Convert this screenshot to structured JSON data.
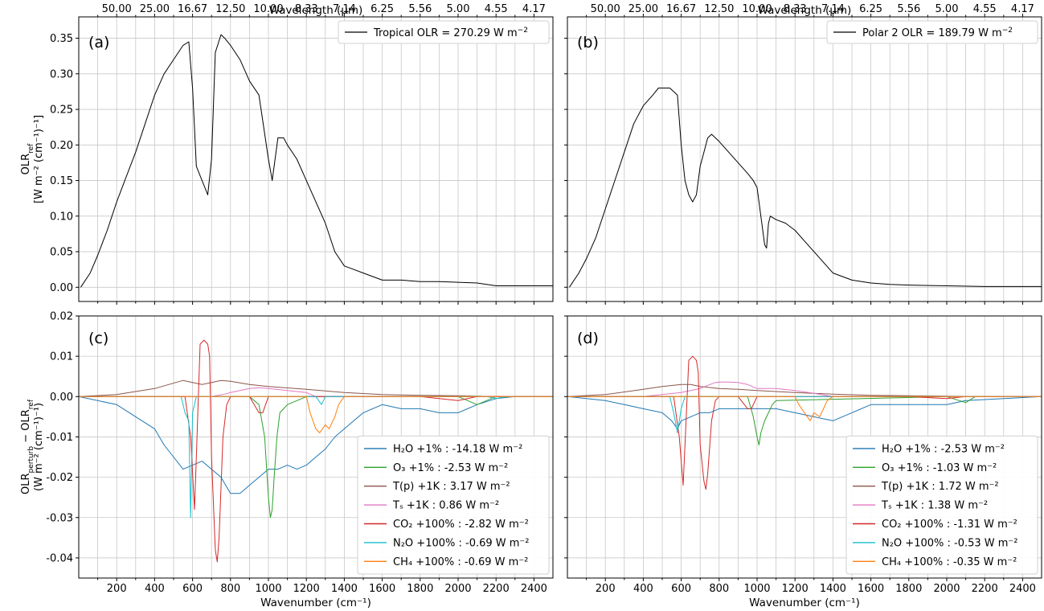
{
  "chart_data": [
    {
      "id": "a",
      "type": "line",
      "panel_label": "(a)",
      "xlim": [
        0,
        2500
      ],
      "ylim": [
        -0.02,
        0.38
      ],
      "yticks": [
        0.0,
        0.05,
        0.1,
        0.15,
        0.2,
        0.25,
        0.3,
        0.35
      ],
      "top_axis_label": "Wavelength (μm)",
      "top_ticks": [
        "50.00",
        "25.00",
        "16.67",
        "12.50",
        "10.00",
        "8.33",
        "7.14",
        "6.25",
        "5.56",
        "5.00",
        "4.55",
        "4.17"
      ],
      "ylabel_main": "OLR",
      "ylabel_sub": "ref",
      "ylabel_line2": "[W m⁻² (cm⁻¹)⁻¹]",
      "legend_placement": "top-right",
      "series": [
        {
          "name": "Tropical OLR = 270.29 W  m",
          "name_sup": "−2",
          "color": "#000000",
          "x": [
            10,
            60,
            100,
            150,
            200,
            250,
            300,
            350,
            400,
            450,
            500,
            550,
            580,
            600,
            620,
            650,
            680,
            700,
            720,
            750,
            770,
            800,
            850,
            900,
            950,
            1000,
            1020,
            1050,
            1080,
            1100,
            1150,
            1200,
            1250,
            1300,
            1350,
            1400,
            1450,
            1500,
            1550,
            1600,
            1700,
            1800,
            1900,
            2000,
            2100,
            2200,
            2300,
            2400,
            2500
          ],
          "y": [
            0.0,
            0.02,
            0.045,
            0.08,
            0.12,
            0.155,
            0.19,
            0.23,
            0.27,
            0.3,
            0.32,
            0.34,
            0.345,
            0.28,
            0.17,
            0.15,
            0.13,
            0.18,
            0.33,
            0.355,
            0.35,
            0.34,
            0.32,
            0.29,
            0.27,
            0.18,
            0.15,
            0.21,
            0.21,
            0.2,
            0.18,
            0.15,
            0.12,
            0.09,
            0.05,
            0.03,
            0.025,
            0.02,
            0.015,
            0.01,
            0.01,
            0.008,
            0.008,
            0.007,
            0.006,
            0.002,
            0.002,
            0.002,
            0.002
          ]
        }
      ]
    },
    {
      "id": "b",
      "type": "line",
      "panel_label": "(b)",
      "xlim": [
        0,
        2500
      ],
      "ylim": [
        -0.02,
        0.38
      ],
      "top_axis_label": "Wavelength (μm)",
      "top_ticks": [
        "50.00",
        "25.00",
        "16.67",
        "12.50",
        "10.00",
        "8.33",
        "7.14",
        "6.25",
        "5.56",
        "5.00",
        "4.55",
        "4.17"
      ],
      "legend_placement": "top-right",
      "series": [
        {
          "name": "Polar 2 OLR = 189.79 W  m",
          "name_sup": "−2",
          "color": "#000000",
          "x": [
            10,
            60,
            100,
            150,
            200,
            250,
            300,
            350,
            400,
            450,
            480,
            500,
            540,
            580,
            600,
            620,
            640,
            660,
            680,
            700,
            720,
            740,
            760,
            800,
            850,
            900,
            950,
            980,
            1000,
            1020,
            1040,
            1050,
            1060,
            1070,
            1100,
            1150,
            1200,
            1250,
            1300,
            1350,
            1400,
            1450,
            1500,
            1600,
            1700,
            1800,
            2000,
            2200,
            2500
          ],
          "y": [
            0.0,
            0.02,
            0.04,
            0.07,
            0.11,
            0.15,
            0.19,
            0.23,
            0.255,
            0.27,
            0.28,
            0.28,
            0.28,
            0.27,
            0.2,
            0.15,
            0.13,
            0.12,
            0.13,
            0.17,
            0.19,
            0.21,
            0.215,
            0.205,
            0.19,
            0.175,
            0.16,
            0.15,
            0.14,
            0.1,
            0.06,
            0.055,
            0.09,
            0.1,
            0.095,
            0.09,
            0.08,
            0.065,
            0.05,
            0.035,
            0.02,
            0.015,
            0.01,
            0.006,
            0.004,
            0.003,
            0.002,
            0.001,
            0.001
          ]
        }
      ]
    },
    {
      "id": "c",
      "type": "line",
      "panel_label": "(c)",
      "xlim": [
        0,
        2500
      ],
      "ylim": [
        -0.045,
        0.02
      ],
      "yticks": [
        -0.04,
        -0.03,
        -0.02,
        -0.01,
        0.0,
        0.01,
        0.02
      ],
      "xticks": [
        200,
        400,
        600,
        800,
        1000,
        1200,
        1400,
        1600,
        1800,
        2000,
        2200,
        2400
      ],
      "xlabel": "Wavenumber (cm⁻¹)",
      "ylabel_main": "OLR",
      "ylabel_sub": "perturb",
      "ylabel_mid": " − OLR",
      "ylabel_sub2": "ref",
      "ylabel_line2": "(W m⁻² (cm⁻¹)⁻¹)",
      "legend_placement": "lower-right",
      "series": [
        {
          "legend": "H₂O +1% : -14.18 W m⁻²",
          "color": "#1f77b4",
          "x": [
            0,
            200,
            300,
            400,
            450,
            500,
            550,
            600,
            650,
            700,
            750,
            800,
            850,
            900,
            950,
            1000,
            1050,
            1100,
            1150,
            1200,
            1250,
            1300,
            1350,
            1400,
            1500,
            1600,
            1700,
            1800,
            1900,
            2000,
            2100,
            2200,
            2300,
            2500
          ],
          "y": [
            0,
            -0.002,
            -0.005,
            -0.008,
            -0.012,
            -0.015,
            -0.018,
            -0.017,
            -0.016,
            -0.018,
            -0.02,
            -0.024,
            -0.024,
            -0.022,
            -0.02,
            -0.018,
            -0.018,
            -0.017,
            -0.018,
            -0.017,
            -0.015,
            -0.013,
            -0.01,
            -0.008,
            -0.004,
            -0.002,
            -0.003,
            -0.003,
            -0.004,
            -0.004,
            -0.002,
            -0.0005,
            0,
            0
          ]
        },
        {
          "legend": "O₃ +1% : -2.53 W m⁻²",
          "color": "#2ca02c",
          "x": [
            0,
            900,
            950,
            980,
            1000,
            1010,
            1020,
            1030,
            1045,
            1060,
            1080,
            1100,
            1200,
            2000,
            2100,
            2200,
            2500
          ],
          "y": [
            0,
            0,
            -0.002,
            -0.01,
            -0.025,
            -0.03,
            -0.028,
            -0.02,
            -0.01,
            -0.004,
            -0.003,
            -0.002,
            0,
            0,
            -0.002,
            0,
            0
          ]
        },
        {
          "legend": "T(p) +1K : 3.17 W m⁻²",
          "color": "#8c564b",
          "x": [
            0,
            200,
            400,
            550,
            600,
            650,
            700,
            750,
            800,
            900,
            1000,
            1200,
            1400,
            1600,
            1800,
            2000,
            2200,
            2500
          ],
          "y": [
            0,
            0.0005,
            0.002,
            0.004,
            0.0035,
            0.003,
            0.0035,
            0.004,
            0.0038,
            0.003,
            0.0025,
            0.0018,
            0.001,
            0.0005,
            0.0003,
            0.0002,
            0,
            0
          ]
        },
        {
          "legend": "Tₛ +1K : 0.86 W m⁻²",
          "color": "#e377c2",
          "x": [
            0,
            700,
            760,
            800,
            900,
            950,
            1000,
            1100,
            1200,
            1250,
            2500
          ],
          "y": [
            0,
            0,
            0.0005,
            0.001,
            0.002,
            0.0022,
            0.002,
            0.0015,
            0.001,
            0,
            0
          ]
        },
        {
          "legend": "CO₂ +100% : -2.82 W m⁻²",
          "color": "#d62728",
          "x": [
            0,
            560,
            590,
            610,
            620,
            640,
            660,
            680,
            690,
            700,
            720,
            730,
            740,
            760,
            780,
            800,
            900,
            950,
            970,
            1000,
            1800,
            2000,
            2100,
            2500
          ],
          "y": [
            0,
            0,
            -0.01,
            -0.028,
            -0.015,
            0.013,
            0.014,
            0.013,
            0.01,
            -0.015,
            -0.038,
            -0.041,
            -0.035,
            -0.01,
            -0.002,
            0,
            0,
            -0.004,
            -0.004,
            0,
            0,
            -0.001,
            0,
            0
          ]
        },
        {
          "legend": "N₂O +100% : -0.69 W m⁻²",
          "color": "#17becf",
          "x": [
            0,
            540,
            560,
            580,
            590,
            600,
            620,
            1250,
            1280,
            1300,
            2150,
            2200,
            2250,
            2500
          ],
          "y": [
            0,
            0,
            -0.004,
            -0.006,
            -0.03,
            -0.004,
            0,
            0,
            -0.002,
            0,
            0,
            -0.0005,
            0,
            0
          ]
        },
        {
          "legend": "CH₄ +100% : -0.69 W m⁻²",
          "color": "#ff7f0e",
          "x": [
            0,
            1200,
            1220,
            1250,
            1270,
            1300,
            1320,
            1350,
            1370,
            1400,
            2500
          ],
          "y": [
            0,
            0,
            -0.004,
            -0.008,
            -0.009,
            -0.007,
            -0.008,
            -0.005,
            -0.002,
            0,
            0
          ]
        }
      ]
    },
    {
      "id": "d",
      "type": "line",
      "panel_label": "(d)",
      "xlim": [
        0,
        2500
      ],
      "ylim": [
        -0.045,
        0.02
      ],
      "xticks": [
        200,
        400,
        600,
        800,
        1000,
        1200,
        1400,
        1600,
        1800,
        2000,
        2200,
        2400
      ],
      "xlabel": "Wavenumber (cm⁻¹)",
      "legend_placement": "lower-right",
      "series": [
        {
          "legend": "H₂O +1% : -2.53 W m⁻²",
          "color": "#1f77b4",
          "x": [
            0,
            200,
            300,
            400,
            500,
            550,
            580,
            600,
            650,
            700,
            750,
            800,
            900,
            1000,
            1100,
            1200,
            1300,
            1400,
            1500,
            1600,
            1700,
            1800,
            1900,
            2000,
            2100,
            2500
          ],
          "y": [
            0,
            -0.001,
            -0.002,
            -0.003,
            -0.004,
            -0.006,
            -0.008,
            -0.006,
            -0.005,
            -0.004,
            -0.004,
            -0.003,
            -0.003,
            -0.003,
            -0.003,
            -0.004,
            -0.005,
            -0.006,
            -0.004,
            -0.002,
            -0.002,
            -0.002,
            -0.002,
            -0.002,
            -0.001,
            0
          ]
        },
        {
          "legend": "O₃ +1% : -1.03 W m⁻²",
          "color": "#2ca02c",
          "x": [
            0,
            950,
            980,
            1000,
            1010,
            1020,
            1040,
            1060,
            1080,
            1100,
            2000,
            2100,
            2150,
            2500
          ],
          "y": [
            0,
            0,
            -0.005,
            -0.01,
            -0.012,
            -0.009,
            -0.006,
            -0.004,
            -0.002,
            -0.001,
            0,
            -0.0015,
            0,
            0
          ]
        },
        {
          "legend": "T(p) +1K : 1.72 W m⁻²",
          "color": "#8c564b",
          "x": [
            0,
            200,
            400,
            500,
            600,
            650,
            700,
            800,
            900,
            1000,
            1200,
            1400,
            1600,
            1800,
            2000,
            2200,
            2500
          ],
          "y": [
            0,
            0.0005,
            0.0018,
            0.0025,
            0.003,
            0.003,
            0.0025,
            0.002,
            0.0018,
            0.0015,
            0.001,
            0.0006,
            0.0003,
            0.0002,
            0.0001,
            0,
            0
          ]
        },
        {
          "legend": "Tₛ +1K : 1.38 W m⁻²",
          "color": "#e377c2",
          "x": [
            0,
            400,
            500,
            600,
            700,
            750,
            780,
            800,
            850,
            900,
            950,
            1000,
            1050,
            1100,
            1200,
            1300,
            1400,
            2500
          ],
          "y": [
            0,
            0,
            0.0005,
            0.001,
            0.002,
            0.003,
            0.0035,
            0.0036,
            0.0036,
            0.0035,
            0.003,
            0.002,
            0.002,
            0.002,
            0.0015,
            0.0008,
            0,
            0
          ]
        },
        {
          "legend": "CO₂ +100% : -1.31 W m⁻²",
          "color": "#d62728",
          "x": [
            0,
            560,
            590,
            610,
            620,
            640,
            660,
            680,
            690,
            700,
            720,
            730,
            740,
            760,
            780,
            800,
            900,
            950,
            970,
            1000,
            1800,
            2000,
            2100,
            2500
          ],
          "y": [
            0,
            0,
            -0.01,
            -0.022,
            -0.012,
            0.009,
            0.01,
            0.009,
            0.006,
            -0.012,
            -0.021,
            -0.023,
            -0.019,
            -0.006,
            -0.001,
            0,
            0,
            -0.003,
            -0.003,
            0,
            0,
            -0.0005,
            0,
            0
          ]
        },
        {
          "legend": "N₂O +100% : -0.53 W m⁻²",
          "color": "#17becf",
          "x": [
            0,
            540,
            560,
            580,
            590,
            600,
            620,
            2500
          ],
          "y": [
            0,
            0,
            -0.004,
            -0.009,
            -0.006,
            -0.003,
            0,
            0
          ]
        },
        {
          "legend": "CH₄ +100% : -0.35 W m⁻²",
          "color": "#ff7f0e",
          "x": [
            0,
            1200,
            1220,
            1250,
            1280,
            1300,
            1330,
            1350,
            1370,
            1400,
            2500
          ],
          "y": [
            0,
            0,
            -0.002,
            -0.004,
            -0.006,
            -0.004,
            -0.005,
            -0.003,
            -0.001,
            0,
            0
          ]
        }
      ]
    }
  ]
}
